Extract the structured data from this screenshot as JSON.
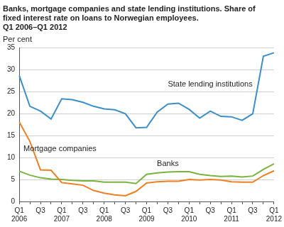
{
  "chart_data": {
    "type": "line",
    "title": [
      "Banks, mortgage companies and state lending institutions. Share of",
      "fixed interest rate on loans to Norwegian employees.",
      "Q1 2006–Q1 2012"
    ],
    "y_label": "Per cent",
    "categories": [
      "Q1 2006",
      null,
      "Q3",
      null,
      "Q1 2007",
      null,
      "Q3",
      null,
      "Q1 2008",
      null,
      "Q3",
      null,
      "Q1 2009",
      null,
      "Q3",
      null,
      "Q1 2010",
      null,
      "Q3",
      null,
      "Q1 2011",
      null,
      "Q3",
      null,
      "Q1 2012"
    ],
    "series": [
      {
        "name": "State lending institutions",
        "color": "#3b8fc6",
        "values": [
          28.7,
          21.7,
          20.6,
          18.8,
          23.4,
          23.2,
          22.6,
          21.7,
          21.1,
          20.9,
          20.0,
          16.8,
          16.9,
          20.4,
          22.2,
          22.4,
          21.0,
          19.0,
          20.6,
          19.4,
          19.3,
          18.5,
          20.0,
          33.1,
          33.9
        ]
      },
      {
        "name": "Mortgage companies",
        "color": "#f07f22",
        "values": [
          18.1,
          13.7,
          7.2,
          7.1,
          4.3,
          4.0,
          3.7,
          2.5,
          1.9,
          1.5,
          1.3,
          2.3,
          4.2,
          4.5,
          4.6,
          4.6,
          5.0,
          4.9,
          5.0,
          4.9,
          4.5,
          4.4,
          4.4,
          5.9,
          7.0
        ]
      },
      {
        "name": "Banks",
        "color": "#7ab33e",
        "values": [
          6.9,
          6.0,
          5.4,
          5.1,
          5.0,
          4.8,
          4.7,
          4.7,
          4.4,
          4.4,
          4.4,
          4.1,
          6.2,
          6.5,
          6.7,
          6.8,
          6.8,
          6.2,
          5.9,
          5.7,
          5.8,
          5.6,
          5.8,
          7.3,
          8.6
        ]
      }
    ],
    "ylim": [
      0,
      35
    ],
    "yticks": [
      0,
      5,
      10,
      15,
      20,
      25,
      30,
      35
    ],
    "grid": true
  }
}
